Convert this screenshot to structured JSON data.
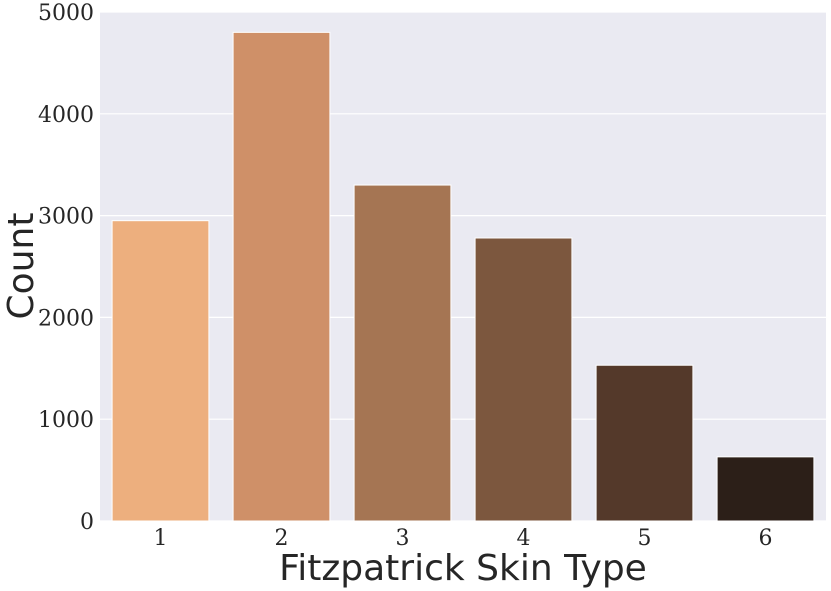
{
  "chart_data": {
    "type": "bar",
    "title": "",
    "xlabel": "Fitzpatrick Skin Type",
    "ylabel": "Count",
    "categories": [
      "1",
      "2",
      "3",
      "4",
      "5",
      "6"
    ],
    "values": [
      2950,
      4800,
      3300,
      2780,
      1530,
      630
    ],
    "colors": [
      "#EDAF7E",
      "#CF9068",
      "#A57553",
      "#7C573E",
      "#54392A",
      "#2C1F18"
    ],
    "ylim": [
      0,
      5000
    ],
    "yticks": [
      0,
      1000,
      2000,
      3000,
      4000,
      5000
    ],
    "grid": true,
    "plot_background": "#EAEAF2",
    "legend": false
  }
}
